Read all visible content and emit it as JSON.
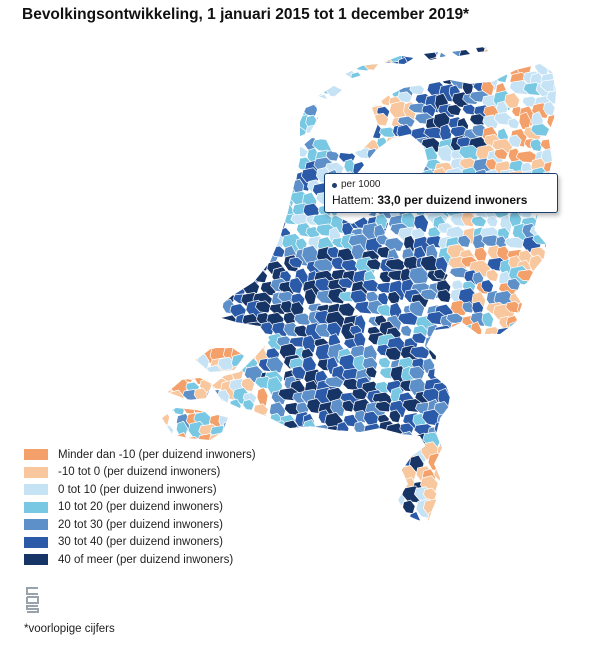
{
  "title": "Bevolkingsontwikkeling, 1 januari 2015 tot 1 december 2019*",
  "colors": {
    "minder_dan_min10": "#f4a06a",
    "min10_tot_0": "#f9c79e",
    "0_tot_10": "#c6e3f6",
    "10_tot_20": "#78c7e3",
    "20_tot_30": "#5d8fc8",
    "30_tot_40": "#2a5aa8",
    "40_of_meer": "#173466",
    "border": "#ffffff"
  },
  "tooltip": {
    "series_label": "per 1000",
    "municipality": "Hattem:",
    "value_text": "33,0 per duizend inwoners"
  },
  "legend": [
    {
      "label": "Minder dan -10 (per duizend inwoners)",
      "color": "#f4a06a"
    },
    {
      "label": "-10 tot 0 (per duizend inwoners)",
      "color": "#f9c79e"
    },
    {
      "label": "0 tot 10 (per duizend inwoners)",
      "color": "#c6e3f6"
    },
    {
      "label": "10 tot 20 (per duizend inwoners)",
      "color": "#78c7e3"
    },
    {
      "label": "20 tot 30 (per duizend inwoners)",
      "color": "#5d8fc8"
    },
    {
      "label": "30 tot 40 (per duizend inwoners)",
      "color": "#2a5aa8"
    },
    {
      "label": "40 of meer (per duizend inwoners)",
      "color": "#173466"
    }
  ],
  "logo_text": "cbs",
  "footnote": "*voorlopige cijfers"
}
